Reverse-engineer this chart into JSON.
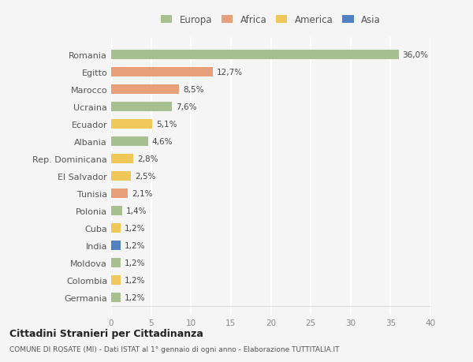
{
  "countries": [
    "Romania",
    "Egitto",
    "Marocco",
    "Ucraina",
    "Ecuador",
    "Albania",
    "Rep. Dominicana",
    "El Salvador",
    "Tunisia",
    "Polonia",
    "Cuba",
    "India",
    "Moldova",
    "Colombia",
    "Germania"
  ],
  "values": [
    36.0,
    12.7,
    8.5,
    7.6,
    5.1,
    4.6,
    2.8,
    2.5,
    2.1,
    1.4,
    1.2,
    1.2,
    1.2,
    1.2,
    1.2
  ],
  "labels": [
    "36,0%",
    "12,7%",
    "8,5%",
    "7,6%",
    "5,1%",
    "4,6%",
    "2,8%",
    "2,5%",
    "2,1%",
    "1,4%",
    "1,2%",
    "1,2%",
    "1,2%",
    "1,2%",
    "1,2%"
  ],
  "continents": [
    "Europa",
    "Africa",
    "Africa",
    "Europa",
    "America",
    "Europa",
    "America",
    "America",
    "Africa",
    "Europa",
    "America",
    "Asia",
    "Europa",
    "America",
    "Europa"
  ],
  "continent_colors": {
    "Europa": "#a8c090",
    "Africa": "#e8a07a",
    "America": "#f0c85a",
    "Asia": "#5080c0"
  },
  "legend_entries": [
    "Europa",
    "Africa",
    "America",
    "Asia"
  ],
  "legend_colors": [
    "#a8c090",
    "#e8a07a",
    "#f0c85a",
    "#5080c0"
  ],
  "xlim": [
    0,
    40
  ],
  "xticks": [
    0,
    5,
    10,
    15,
    20,
    25,
    30,
    35,
    40
  ],
  "title": "Cittadini Stranieri per Cittadinanza",
  "subtitle": "COMUNE DI ROSATE (MI) - Dati ISTAT al 1° gennaio di ogni anno - Elaborazione TUTTITALIA.IT",
  "background_color": "#f5f5f5",
  "grid_color": "#ffffff",
  "bar_height": 0.55
}
